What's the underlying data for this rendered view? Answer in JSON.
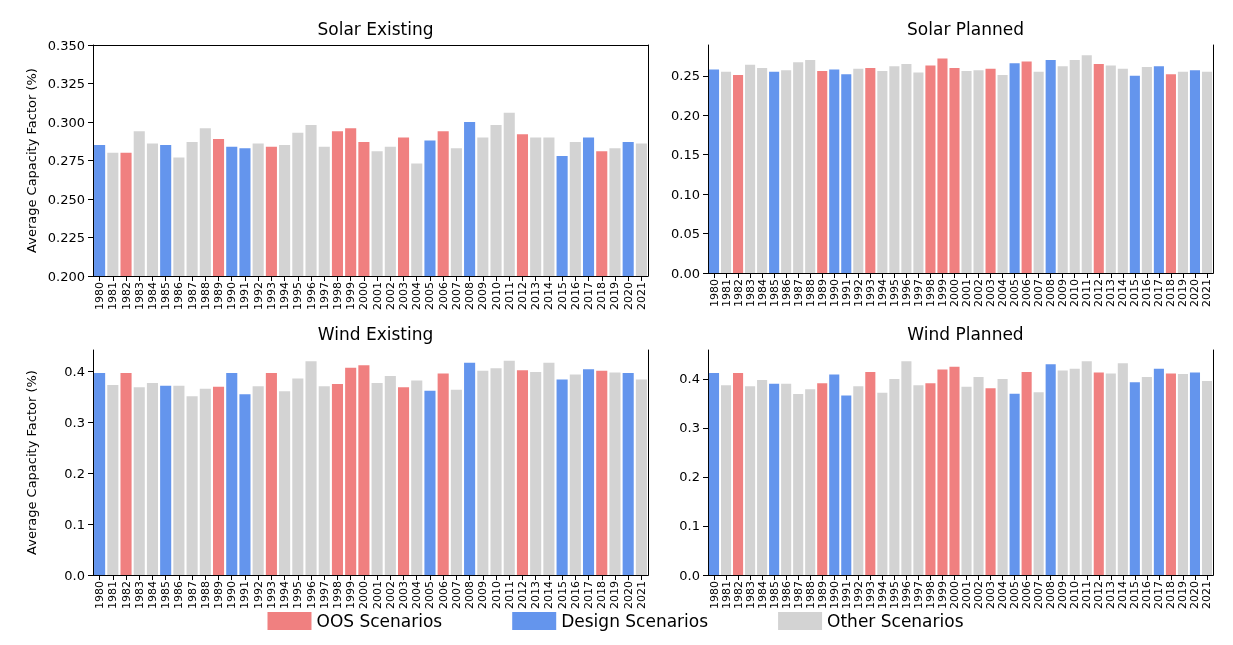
{
  "chart_data": [
    {
      "type": "bar",
      "title": "Solar Existing",
      "ylabel": "Average Capacity Factor (%)",
      "stacked": true,
      "grid": false,
      "ylim": [
        0.2,
        0.35
      ],
      "yticks": [
        {
          "value": 0.2,
          "label": "0.200"
        },
        {
          "value": 0.225,
          "label": "0.225"
        },
        {
          "value": 0.25,
          "label": "0.250"
        },
        {
          "value": 0.275,
          "label": "0.275"
        },
        {
          "value": 0.3,
          "label": "0.300"
        },
        {
          "value": 0.325,
          "label": "0.325"
        },
        {
          "value": 0.35,
          "label": "0.350"
        }
      ],
      "categories": [
        "1980",
        "1981",
        "1982",
        "1983",
        "1984",
        "1985",
        "1986",
        "1987",
        "1988",
        "1989",
        "1990",
        "1991",
        "1992",
        "1993",
        "1994",
        "1995",
        "1996",
        "1997",
        "1998",
        "1999",
        "2000",
        "2001",
        "2002",
        "2003",
        "2004",
        "2005",
        "2006",
        "2007",
        "2008",
        "2009",
        "2010",
        "2011",
        "2012",
        "2013",
        "2014",
        "2015",
        "2016",
        "2017",
        "2018",
        "2019",
        "2020",
        "2021"
      ],
      "series": [
        {
          "color": "#f08080",
          "values": [
            null,
            null,
            0.28,
            null,
            null,
            null,
            null,
            null,
            null,
            0.289,
            null,
            null,
            null,
            0.284,
            null,
            null,
            null,
            null,
            0.294,
            0.296,
            0.287,
            null,
            null,
            0.29,
            null,
            null,
            0.294,
            null,
            null,
            null,
            null,
            null,
            0.292,
            null,
            null,
            null,
            null,
            null,
            0.281,
            null,
            null,
            null
          ]
        },
        {
          "color": "#6495ed",
          "values": [
            0.285,
            null,
            null,
            null,
            null,
            0.285,
            null,
            null,
            null,
            null,
            0.284,
            0.283,
            null,
            null,
            null,
            null,
            null,
            null,
            null,
            null,
            null,
            null,
            null,
            null,
            null,
            0.288,
            null,
            null,
            0.3,
            null,
            null,
            null,
            null,
            null,
            null,
            0.278,
            null,
            0.29,
            null,
            null,
            0.287,
            null
          ]
        },
        {
          "color": "#d3d3d3",
          "values": [
            null,
            0.28,
            null,
            0.294,
            0.286,
            null,
            0.277,
            0.287,
            0.296,
            null,
            null,
            null,
            0.286,
            null,
            0.285,
            0.293,
            0.298,
            0.284,
            null,
            null,
            null,
            0.281,
            0.284,
            null,
            0.273,
            null,
            null,
            0.283,
            null,
            0.29,
            0.298,
            0.306,
            null,
            0.29,
            0.29,
            null,
            0.287,
            null,
            null,
            0.283,
            null,
            0.286
          ]
        }
      ]
    },
    {
      "type": "bar",
      "title": "Solar Planned",
      "stacked": true,
      "grid": false,
      "ylim": [
        0,
        0.289
      ],
      "yticks": [
        {
          "value": 0,
          "label": "0.00"
        },
        {
          "value": 0.05,
          "label": "0.05"
        },
        {
          "value": 0.1,
          "label": "0.10"
        },
        {
          "value": 0.15,
          "label": "0.15"
        },
        {
          "value": 0.2,
          "label": "0.20"
        },
        {
          "value": 0.25,
          "label": "0.25"
        }
      ],
      "categories": [
        "1980",
        "1981",
        "1982",
        "1983",
        "1984",
        "1985",
        "1986",
        "1987",
        "1988",
        "1989",
        "1990",
        "1991",
        "1992",
        "1993",
        "1994",
        "1995",
        "1996",
        "1997",
        "1998",
        "1999",
        "2000",
        "2001",
        "2002",
        "2003",
        "2004",
        "2005",
        "2006",
        "2007",
        "2008",
        "2009",
        "2010",
        "2011",
        "2012",
        "2013",
        "2014",
        "2015",
        "2016",
        "2017",
        "2018",
        "2019",
        "2020",
        "2021"
      ],
      "series": [
        {
          "color": "#f08080",
          "values": [
            null,
            null,
            0.251,
            null,
            null,
            null,
            null,
            null,
            null,
            0.256,
            null,
            null,
            null,
            0.26,
            null,
            null,
            null,
            null,
            0.263,
            0.272,
            0.26,
            null,
            null,
            0.259,
            null,
            null,
            0.268,
            null,
            null,
            null,
            null,
            null,
            0.265,
            null,
            null,
            null,
            null,
            null,
            0.252,
            null,
            null,
            null
          ]
        },
        {
          "color": "#6495ed",
          "values": [
            0.258,
            null,
            null,
            null,
            null,
            0.255,
            null,
            null,
            null,
            null,
            0.258,
            0.252,
            null,
            null,
            null,
            null,
            null,
            null,
            null,
            null,
            null,
            null,
            null,
            null,
            null,
            0.266,
            null,
            null,
            0.27,
            null,
            null,
            null,
            null,
            null,
            null,
            0.25,
            null,
            0.262,
            null,
            null,
            0.257,
            null
          ]
        },
        {
          "color": "#d3d3d3",
          "values": [
            null,
            0.255,
            null,
            0.264,
            0.26,
            null,
            0.257,
            0.267,
            0.27,
            null,
            null,
            null,
            0.259,
            null,
            0.256,
            0.262,
            0.265,
            0.254,
            null,
            null,
            null,
            0.256,
            0.257,
            null,
            0.251,
            null,
            null,
            0.255,
            null,
            0.262,
            0.27,
            0.276,
            null,
            0.263,
            0.259,
            null,
            0.261,
            null,
            null,
            0.255,
            null,
            0.255
          ]
        }
      ]
    },
    {
      "type": "bar",
      "title": "Wind Existing",
      "ylabel": "Average Capacity Factor (%)",
      "stacked": true,
      "grid": false,
      "ylim": [
        0,
        0.442
      ],
      "yticks": [
        {
          "value": 0,
          "label": "0.0"
        },
        {
          "value": 0.1,
          "label": "0.1"
        },
        {
          "value": 0.2,
          "label": "0.2"
        },
        {
          "value": 0.3,
          "label": "0.3"
        },
        {
          "value": 0.4,
          "label": "0.4"
        }
      ],
      "categories": [
        "1980",
        "1981",
        "1982",
        "1983",
        "1984",
        "1985",
        "1986",
        "1987",
        "1988",
        "1989",
        "1990",
        "1991",
        "1992",
        "1993",
        "1994",
        "1995",
        "1996",
        "1997",
        "1998",
        "1999",
        "2000",
        "2001",
        "2002",
        "2003",
        "2004",
        "2005",
        "2006",
        "2007",
        "2008",
        "2009",
        "2010",
        "2011",
        "2012",
        "2013",
        "2014",
        "2015",
        "2016",
        "2017",
        "2018",
        "2019",
        "2020",
        "2021"
      ],
      "series": [
        {
          "color": "#f08080",
          "values": [
            null,
            null,
            0.397,
            null,
            null,
            null,
            null,
            null,
            null,
            0.37,
            null,
            null,
            null,
            0.397,
            null,
            null,
            null,
            null,
            0.375,
            0.407,
            0.412,
            null,
            null,
            0.369,
            null,
            null,
            0.396,
            null,
            null,
            null,
            null,
            null,
            0.402,
            null,
            null,
            null,
            null,
            null,
            0.401,
            null,
            null,
            null
          ]
        },
        {
          "color": "#6495ed",
          "values": [
            0.397,
            null,
            null,
            null,
            null,
            0.372,
            null,
            null,
            null,
            null,
            0.397,
            0.355,
            null,
            null,
            null,
            null,
            null,
            null,
            null,
            null,
            null,
            null,
            null,
            null,
            null,
            0.362,
            null,
            null,
            0.417,
            null,
            null,
            null,
            null,
            null,
            null,
            0.384,
            null,
            0.404,
            null,
            null,
            0.397,
            null
          ]
        },
        {
          "color": "#d3d3d3",
          "values": [
            null,
            0.373,
            null,
            0.369,
            0.377,
            null,
            0.372,
            0.351,
            0.366,
            null,
            null,
            null,
            0.371,
            null,
            0.361,
            0.386,
            0.42,
            0.371,
            null,
            null,
            null,
            0.377,
            0.391,
            null,
            0.382,
            null,
            null,
            0.364,
            null,
            0.401,
            0.406,
            0.421,
            null,
            0.399,
            0.417,
            null,
            0.394,
            null,
            null,
            0.398,
            null,
            0.384
          ]
        }
      ]
    },
    {
      "type": "bar",
      "title": "Wind Planned",
      "stacked": true,
      "grid": false,
      "legend": "bottom",
      "ylim": [
        0,
        0.459
      ],
      "yticks": [
        {
          "value": 0,
          "label": "0.0"
        },
        {
          "value": 0.1,
          "label": "0.1"
        },
        {
          "value": 0.2,
          "label": "0.2"
        },
        {
          "value": 0.3,
          "label": "0.3"
        },
        {
          "value": 0.4,
          "label": "0.4"
        }
      ],
      "categories": [
        "1980",
        "1981",
        "1982",
        "1983",
        "1984",
        "1985",
        "1986",
        "1987",
        "1988",
        "1989",
        "1990",
        "1991",
        "1992",
        "1993",
        "1994",
        "1995",
        "1996",
        "1997",
        "1998",
        "1999",
        "2000",
        "2001",
        "2002",
        "2003",
        "2004",
        "2005",
        "2006",
        "2007",
        "2008",
        "2009",
        "2010",
        "2011",
        "2012",
        "2013",
        "2014",
        "2015",
        "2016",
        "2017",
        "2018",
        "2019",
        "2020",
        "2021"
      ],
      "series": [
        {
          "name": "OOS Scenarios",
          "color": "#f08080",
          "values": [
            null,
            null,
            0.412,
            null,
            null,
            null,
            null,
            null,
            null,
            0.391,
            null,
            null,
            null,
            0.414,
            null,
            null,
            null,
            null,
            0.391,
            0.419,
            0.425,
            null,
            null,
            0.381,
            null,
            null,
            0.414,
            null,
            null,
            null,
            null,
            null,
            0.413,
            null,
            null,
            null,
            null,
            null,
            0.411,
            null,
            null,
            null
          ]
        },
        {
          "name": "Design Scenarios",
          "color": "#6495ed",
          "values": [
            0.412,
            null,
            null,
            null,
            null,
            0.39,
            null,
            null,
            null,
            null,
            0.409,
            0.366,
            null,
            null,
            null,
            null,
            null,
            null,
            null,
            null,
            null,
            null,
            null,
            null,
            null,
            0.37,
            null,
            null,
            0.43,
            null,
            null,
            null,
            null,
            null,
            null,
            0.393,
            null,
            0.421,
            null,
            null,
            0.413,
            null
          ]
        },
        {
          "name": "Other Scenarios",
          "color": "#d3d3d3",
          "values": [
            null,
            0.387,
            null,
            0.385,
            0.398,
            null,
            0.39,
            0.369,
            0.379,
            null,
            null,
            null,
            0.385,
            null,
            0.372,
            0.4,
            0.436,
            0.387,
            null,
            null,
            null,
            0.384,
            0.404,
            null,
            0.4,
            null,
            null,
            0.373,
            null,
            0.417,
            0.421,
            0.436,
            null,
            0.411,
            0.432,
            null,
            0.404,
            null,
            null,
            0.41,
            null,
            0.396
          ]
        }
      ]
    }
  ]
}
